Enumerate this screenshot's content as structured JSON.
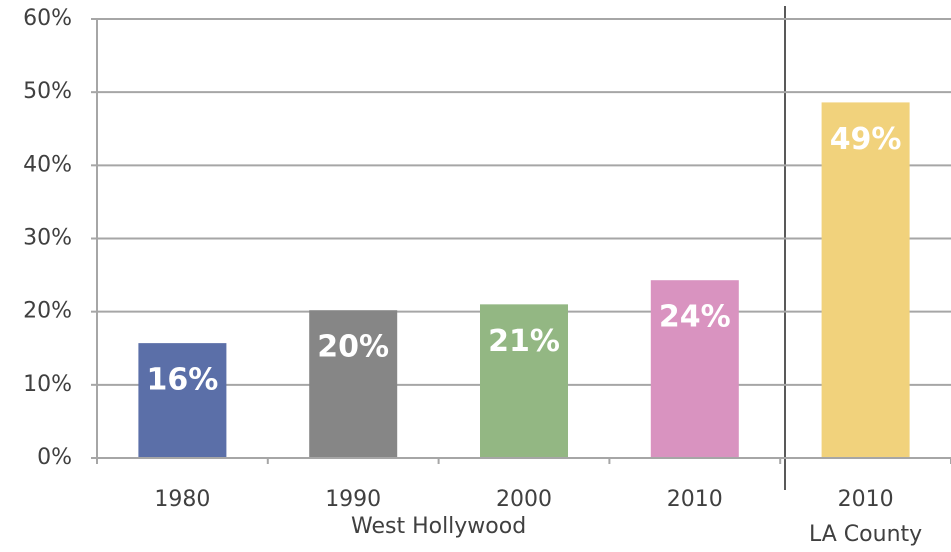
{
  "chart_data": {
    "type": "bar",
    "categories": [
      "1980",
      "1990",
      "2000",
      "2010",
      "2010"
    ],
    "values": [
      15.7,
      20.2,
      21,
      24.3,
      48.6
    ],
    "value_labels": [
      "16%",
      "20%",
      "21%",
      "24%",
      "49%"
    ],
    "colors": [
      "#5b6fa8",
      "#868686",
      "#93b783",
      "#d993c0",
      "#f1d27c"
    ],
    "group_labels": [
      "West Hollywood",
      "LA County"
    ],
    "ylim": [
      0,
      60
    ],
    "yticks": [
      {
        "value": 0,
        "label": "0%"
      },
      {
        "value": 10,
        "label": "10%"
      },
      {
        "value": 20,
        "label": "20%"
      },
      {
        "value": 30,
        "label": "30%"
      },
      {
        "value": 40,
        "label": "40%"
      },
      {
        "value": 50,
        "label": "50%"
      },
      {
        "value": 60,
        "label": "60%"
      }
    ],
    "grid": true
  }
}
